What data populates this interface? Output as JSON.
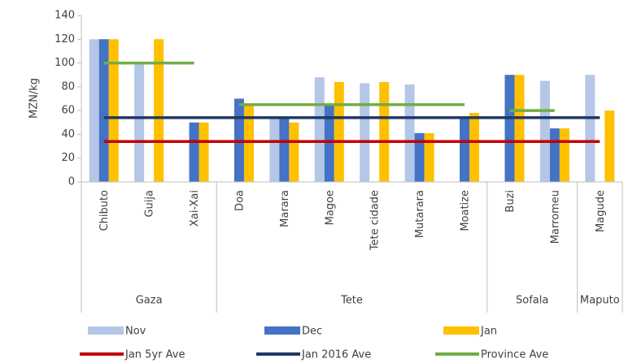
{
  "chart_data": {
    "type": "bar",
    "y_label": "MZN/kg",
    "categories": [
      "Chibuto",
      "Guija",
      "Xai-Xai",
      "Doa",
      "Marara",
      "Magoe",
      "Tete cidade",
      "Mutarara",
      "Moatize",
      "Buzi",
      "Marromeu",
      "Magude"
    ],
    "category_groups": [
      "Gaza",
      "Gaza",
      "Gaza",
      "Tete",
      "Tete",
      "Tete",
      "Tete",
      "Tete",
      "Tete",
      "Sofala",
      "Sofala",
      "Maputo"
    ],
    "series": [
      {
        "name": "Nov",
        "color": "#b4c7e7",
        "values": [
          120,
          100,
          null,
          null,
          55,
          88,
          83,
          82,
          null,
          null,
          85,
          90
        ]
      },
      {
        "name": "Dec",
        "color": "#4472c4",
        "values": [
          120,
          null,
          50,
          70,
          55,
          65,
          null,
          41,
          55,
          90,
          45,
          null
        ]
      },
      {
        "name": "Jan",
        "color": "#ffc000",
        "values": [
          120,
          120,
          50,
          65,
          50,
          84,
          84,
          41,
          58,
          90,
          45,
          60
        ]
      }
    ],
    "line_series": [
      {
        "name": "Jan 5yr Ave",
        "color": "#c00000",
        "values": [
          34,
          34,
          34,
          34,
          34,
          34,
          34,
          34,
          34,
          34,
          34,
          34
        ]
      },
      {
        "name": "Jan 2016 Ave",
        "color": "#203864",
        "values": [
          54,
          54,
          54,
          54,
          54,
          54,
          54,
          54,
          54,
          54,
          54,
          54
        ]
      },
      {
        "name": "Province Ave",
        "color": "#70ad47",
        "per_group": true,
        "values": [
          100,
          100,
          100,
          65,
          65,
          65,
          65,
          65,
          65,
          60,
          60,
          null
        ]
      }
    ],
    "ylim": [
      0,
      140
    ],
    "yticks": [
      0,
      20,
      40,
      60,
      80,
      100,
      120,
      140
    ],
    "grid": false
  }
}
